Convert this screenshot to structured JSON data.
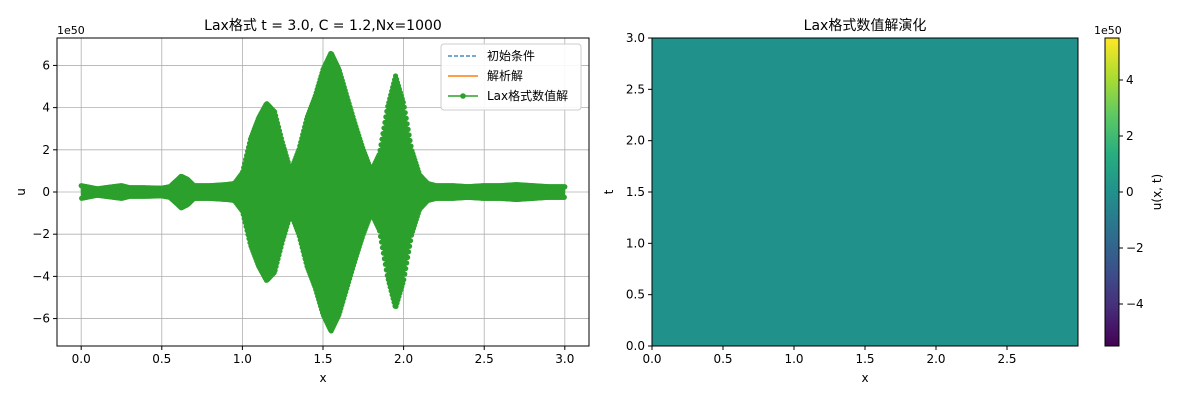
{
  "chart_data": [
    {
      "type": "line",
      "title": "Lax格式 t = 3.0, C = 1.2,Nx=1000",
      "xlabel": "x",
      "ylabel": "u",
      "offset_text": "1e50",
      "xlim": [
        -0.15,
        3.15
      ],
      "ylim": [
        -7.3,
        7.3
      ],
      "xticks": [
        0.0,
        0.5,
        1.0,
        1.5,
        2.0,
        2.5,
        3.0
      ],
      "xtick_labels": [
        "0.0",
        "0.5",
        "1.0",
        "1.5",
        "2.0",
        "2.5",
        "3.0"
      ],
      "yticks": [
        -6,
        -4,
        -2,
        0,
        2,
        4,
        6
      ],
      "ytick_labels": [
        "−6",
        "−4",
        "−2",
        "0",
        "2",
        "4",
        "6"
      ],
      "grid": true,
      "legend_position": "top-right",
      "series": [
        {
          "name": "初始条件",
          "color": "#1f77b4",
          "style": "dashed"
        },
        {
          "name": "解析解",
          "color": "#ff7f0e",
          "style": "solid"
        },
        {
          "name": "Lax格式数值解",
          "color": "#2ca02c",
          "style": "solid-markers",
          "envelope": {
            "x": [
              0.0,
              0.1,
              0.2,
              0.25,
              0.3,
              0.4,
              0.5,
              0.55,
              0.6,
              0.62,
              0.66,
              0.7,
              0.8,
              0.9,
              0.95,
              1.0,
              1.05,
              1.1,
              1.15,
              1.2,
              1.25,
              1.3,
              1.35,
              1.4,
              1.45,
              1.5,
              1.55,
              1.6,
              1.65,
              1.7,
              1.75,
              1.8,
              1.85,
              1.9,
              1.95,
              2.0,
              2.05,
              2.1,
              2.15,
              2.2,
              2.3,
              2.4,
              2.5,
              2.6,
              2.7,
              2.8,
              2.9,
              3.0
            ],
            "amp": [
              0.3,
              0.15,
              0.25,
              0.3,
              0.2,
              0.2,
              0.18,
              0.25,
              0.6,
              0.75,
              0.6,
              0.3,
              0.3,
              0.35,
              0.4,
              0.9,
              2.5,
              3.5,
              4.2,
              3.8,
              2.3,
              1.0,
              2.0,
              3.5,
              4.5,
              5.8,
              6.6,
              5.8,
              4.5,
              3.2,
              2.0,
              1.0,
              1.8,
              4.0,
              5.5,
              4.2,
              2.0,
              0.8,
              0.4,
              0.3,
              0.3,
              0.25,
              0.3,
              0.3,
              0.35,
              0.3,
              0.25,
              0.25
            ]
          }
        }
      ]
    },
    {
      "type": "heatmap",
      "title": "Lax格式数值解演化",
      "xlabel": "x",
      "ylabel": "t",
      "xlim": [
        0.0,
        3.0
      ],
      "ylim": [
        0.0,
        3.0
      ],
      "xticks": [
        0.0,
        0.5,
        1.0,
        1.5,
        2.0,
        2.5
      ],
      "xtick_labels": [
        "0.0",
        "0.5",
        "1.0",
        "1.5",
        "2.0",
        "2.5"
      ],
      "yticks": [
        0.0,
        0.5,
        1.0,
        1.5,
        2.0,
        2.5,
        3.0
      ],
      "ytick_labels": [
        "0.0",
        "0.5",
        "1.0",
        "1.5",
        "2.0",
        "2.5",
        "3.0"
      ],
      "fill_color": "#21918c",
      "colormap": "viridis",
      "colorbar": {
        "label": "u(x, t)",
        "offset_text": "1e50",
        "range": [
          -5.5,
          5.5
        ],
        "ticks": [
          -4,
          -2,
          0,
          2,
          4
        ],
        "tick_labels": [
          "−4",
          "−2",
          "0",
          "2",
          "4"
        ]
      }
    }
  ]
}
